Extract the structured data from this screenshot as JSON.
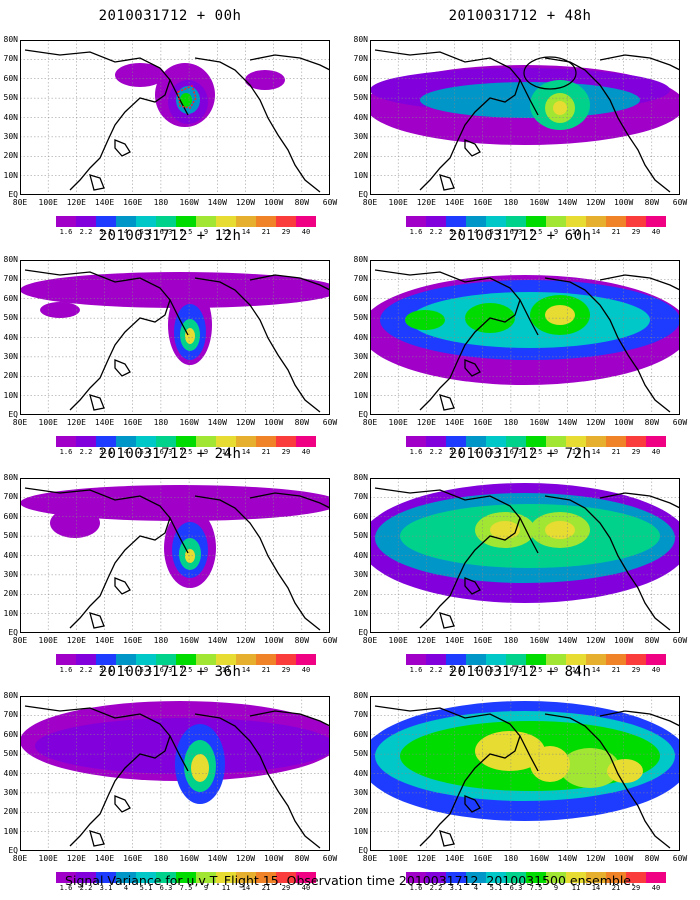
{
  "figure": {
    "caption": "Signal Variance for u,v,T. Flight 15. Observation time 2010031712. 2010031500 ensemble."
  },
  "chart_data": {
    "type": "heatmap",
    "x_tick_labels": [
      "80E",
      "100E",
      "120E",
      "140E",
      "160E",
      "180",
      "160W",
      "140W",
      "120W",
      "100W",
      "80W",
      "60W"
    ],
    "y_tick_labels": [
      "80N",
      "70N",
      "60N",
      "50N",
      "40N",
      "30N",
      "20N",
      "10N",
      "EQ"
    ],
    "colorbar": {
      "labels": [
        "1.6",
        "2.2",
        "3.1",
        "4",
        "5.1",
        "6.3",
        "7.5",
        "9",
        "11",
        "14",
        "21",
        "29",
        "40"
      ],
      "colors": [
        "#a000c8",
        "#8200dc",
        "#1e3cff",
        "#0096c8",
        "#00c8c8",
        "#00d28c",
        "#00dc00",
        "#a0e632",
        "#e6dc32",
        "#e6af2d",
        "#f08228",
        "#fa3c3c",
        "#f00082"
      ]
    },
    "panels": [
      {
        "title": "2010031712 + 00h",
        "lead_hours": 0,
        "max_level": "11"
      },
      {
        "title": "2010031712 + 48h",
        "lead_hours": 48,
        "max_level": "14"
      },
      {
        "title": "2010031712 + 12h",
        "lead_hours": 12,
        "max_level": "11"
      },
      {
        "title": "2010031712 + 60h",
        "lead_hours": 60,
        "max_level": "14"
      },
      {
        "title": "2010031712 + 24h",
        "lead_hours": 24,
        "max_level": "14"
      },
      {
        "title": "2010031712 + 72h",
        "lead_hours": 72,
        "max_level": "14"
      },
      {
        "title": "2010031712 + 36h",
        "lead_hours": 36,
        "max_level": "14"
      },
      {
        "title": "2010031712 + 84h",
        "lead_hours": 84,
        "max_level": "14"
      }
    ]
  }
}
